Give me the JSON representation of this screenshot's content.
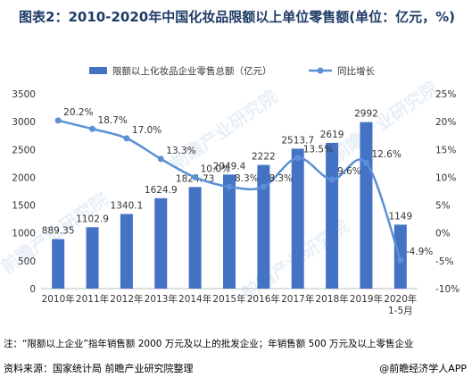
{
  "title": "图表2：2010-2020年中国化妆品限额以上单位零售额(单位：亿元，%)",
  "note": "注：“限额以上企业”指年销售额 2000 万元及以上的批发企业；年销售额 500 万元及以上零售企业",
  "source": "资料来源：国家统计局 前瞻产业研究院整理",
  "brand": "@前瞻经济学人APP",
  "watermark": "前瞻产业研究院",
  "colors": {
    "bar": "#4472c4",
    "line": "#5b8fd6",
    "title": "#1f3b66"
  },
  "chart_data": {
    "type": "bar+line",
    "categories": [
      "2010年",
      "2011年",
      "2012年",
      "2013年",
      "2014年",
      "2015年",
      "2016年",
      "2017年",
      "2018年",
      "2019年",
      "2020年\n1-5月"
    ],
    "series": [
      {
        "name": "限额以上化妆品企业零售总额（亿元）",
        "type": "bar",
        "axis": "left",
        "values": [
          889.35,
          1102.9,
          1340.1,
          1624.9,
          1824.73,
          2049.4,
          2222,
          2513.7,
          2619,
          2992,
          1149
        ],
        "labels": [
          "889.35",
          "1102.9",
          "1340.1",
          "1624.9",
          "1824.73",
          "2049.4",
          "2222",
          "2513.7",
          "2619",
          "2992",
          "1149"
        ]
      },
      {
        "name": "同比增长",
        "type": "line",
        "axis": "right",
        "values": [
          20.2,
          18.7,
          17.0,
          13.3,
          10.0,
          8.3,
          8.3,
          13.5,
          9.6,
          12.6,
          -4.9
        ],
        "labels": [
          "20.2%",
          "18.7%",
          "17.0%",
          "13.3%",
          "10.0%",
          "8.3%",
          "8.3%",
          "13.5%",
          "9.6%",
          "12.6%",
          "-4.9%"
        ]
      }
    ],
    "yleft": {
      "min": 0,
      "max": 3500,
      "step": 500
    },
    "yright": {
      "min": -10,
      "max": 25,
      "step": 5,
      "suffix": "%"
    },
    "legend": "top"
  }
}
